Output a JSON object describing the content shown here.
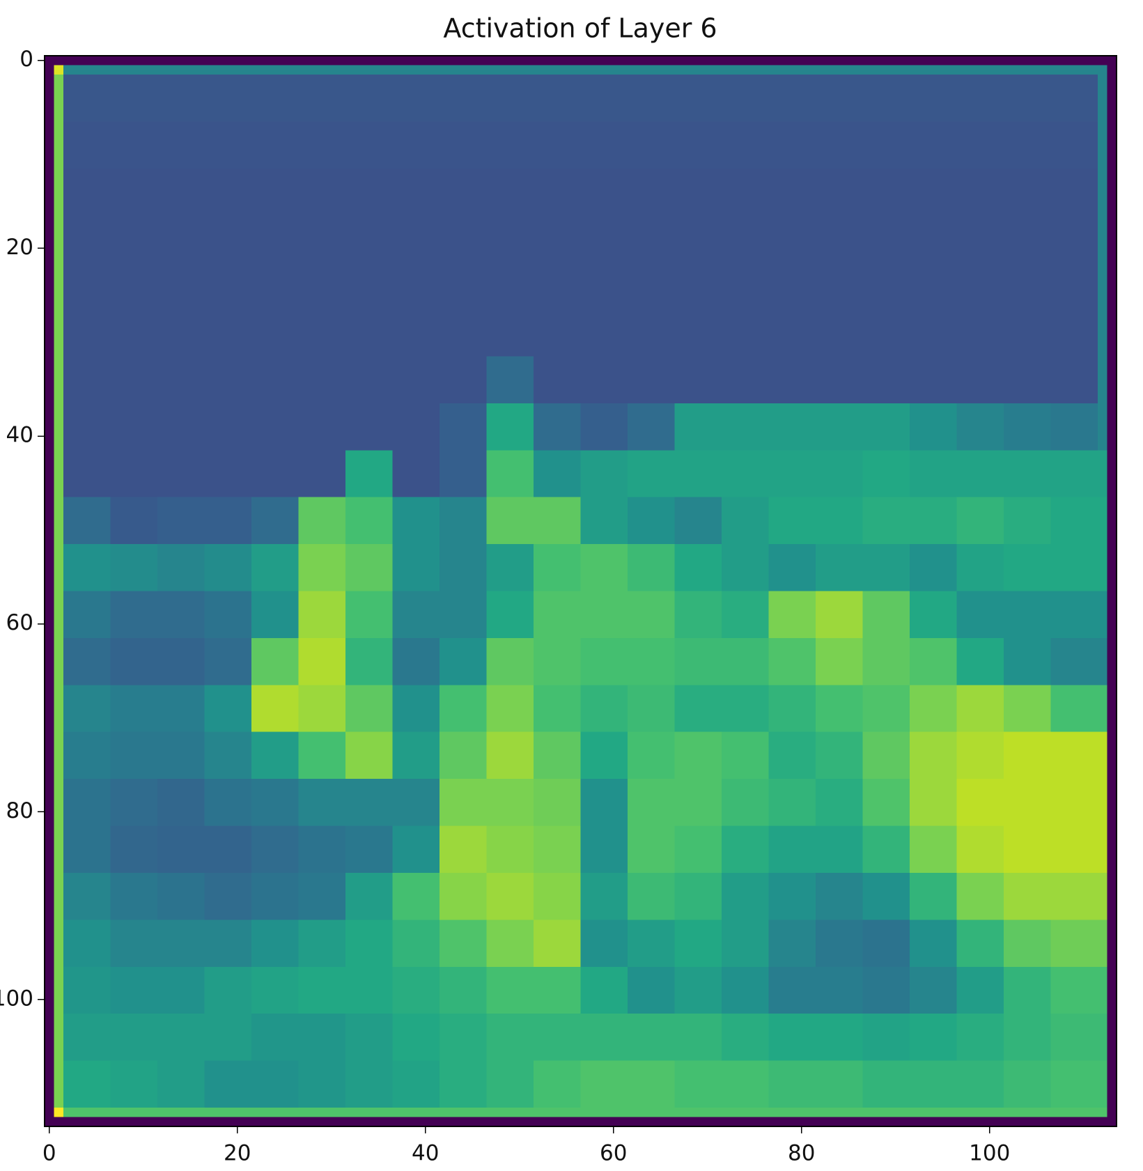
{
  "chart_data": {
    "type": "heatmap",
    "title": "Activation of Layer 6",
    "colormap": "viridis",
    "xlim": [
      -0.5,
      113.5
    ],
    "ylim": [
      113.5,
      -0.5
    ],
    "xticks": [
      0,
      20,
      40,
      60,
      80,
      100
    ],
    "yticks": [
      0,
      20,
      40,
      60,
      80,
      100
    ],
    "x_edges": [
      -0.5,
      0.5,
      1.5,
      6.5,
      11.5,
      16.5,
      21.5,
      26.5,
      31.5,
      36.5,
      41.5,
      46.5,
      51.5,
      56.5,
      61.5,
      66.5,
      71.5,
      76.5,
      81.5,
      86.5,
      91.5,
      96.5,
      101.5,
      106.5,
      111.5,
      112.5,
      113.5
    ],
    "y_edges": [
      -0.5,
      0.5,
      1.5,
      6.5,
      11.5,
      16.5,
      21.5,
      26.5,
      31.5,
      36.5,
      41.5,
      46.5,
      51.5,
      56.5,
      61.5,
      66.5,
      71.5,
      76.5,
      81.5,
      86.5,
      91.5,
      96.5,
      101.5,
      106.5,
      111.5,
      112.5,
      113.5
    ],
    "values": [
      [
        0,
        0,
        0,
        0,
        0,
        0,
        0,
        0,
        0,
        0,
        0,
        0,
        0,
        0,
        0,
        0,
        0,
        0,
        0,
        0,
        0,
        0,
        0,
        0,
        0,
        0
      ],
      [
        0,
        0.95,
        0.45,
        0.45,
        0.45,
        0.45,
        0.45,
        0.45,
        0.45,
        0.45,
        0.45,
        0.45,
        0.45,
        0.45,
        0.45,
        0.45,
        0.45,
        0.45,
        0.45,
        0.45,
        0.45,
        0.45,
        0.45,
        0.45,
        0.45,
        0
      ],
      [
        0,
        0.8,
        0.27,
        0.27,
        0.27,
        0.27,
        0.27,
        0.27,
        0.27,
        0.27,
        0.27,
        0.27,
        0.27,
        0.27,
        0.27,
        0.27,
        0.27,
        0.27,
        0.27,
        0.27,
        0.27,
        0.27,
        0.27,
        0.27,
        0.45,
        0
      ],
      [
        0,
        0.8,
        0.26,
        0.26,
        0.26,
        0.26,
        0.26,
        0.26,
        0.26,
        0.26,
        0.26,
        0.26,
        0.26,
        0.26,
        0.26,
        0.26,
        0.26,
        0.26,
        0.26,
        0.26,
        0.26,
        0.26,
        0.26,
        0.26,
        0.45,
        0
      ],
      [
        0,
        0.8,
        0.25,
        0.25,
        0.25,
        0.25,
        0.25,
        0.25,
        0.25,
        0.25,
        0.25,
        0.25,
        0.25,
        0.25,
        0.25,
        0.25,
        0.25,
        0.25,
        0.25,
        0.25,
        0.25,
        0.25,
        0.25,
        0.25,
        0.45,
        0
      ],
      [
        0,
        0.8,
        0.25,
        0.25,
        0.25,
        0.25,
        0.25,
        0.25,
        0.25,
        0.25,
        0.25,
        0.25,
        0.25,
        0.25,
        0.25,
        0.25,
        0.25,
        0.25,
        0.25,
        0.25,
        0.25,
        0.25,
        0.25,
        0.25,
        0.45,
        0
      ],
      [
        0,
        0.8,
        0.25,
        0.25,
        0.25,
        0.25,
        0.25,
        0.25,
        0.25,
        0.25,
        0.25,
        0.25,
        0.25,
        0.25,
        0.25,
        0.25,
        0.25,
        0.25,
        0.25,
        0.25,
        0.25,
        0.25,
        0.25,
        0.25,
        0.45,
        0
      ],
      [
        0,
        0.8,
        0.25,
        0.25,
        0.25,
        0.25,
        0.25,
        0.25,
        0.25,
        0.25,
        0.25,
        0.25,
        0.25,
        0.25,
        0.25,
        0.25,
        0.25,
        0.25,
        0.25,
        0.25,
        0.25,
        0.25,
        0.25,
        0.25,
        0.45,
        0
      ],
      [
        0,
        0.8,
        0.25,
        0.25,
        0.25,
        0.25,
        0.25,
        0.25,
        0.25,
        0.25,
        0.25,
        0.35,
        0.25,
        0.25,
        0.25,
        0.25,
        0.25,
        0.25,
        0.25,
        0.25,
        0.25,
        0.25,
        0.25,
        0.25,
        0.45,
        0
      ],
      [
        0,
        0.8,
        0.25,
        0.25,
        0.25,
        0.25,
        0.25,
        0.25,
        0.25,
        0.25,
        0.3,
        0.6,
        0.35,
        0.3,
        0.35,
        0.55,
        0.55,
        0.55,
        0.55,
        0.55,
        0.5,
        0.45,
        0.42,
        0.4,
        0.45,
        0
      ],
      [
        0,
        0.8,
        0.25,
        0.25,
        0.25,
        0.25,
        0.25,
        0.25,
        0.6,
        0.25,
        0.3,
        0.7,
        0.5,
        0.55,
        0.58,
        0.58,
        0.58,
        0.58,
        0.58,
        0.6,
        0.58,
        0.58,
        0.58,
        0.58,
        0.58,
        0
      ],
      [
        0,
        0.8,
        0.35,
        0.28,
        0.3,
        0.3,
        0.35,
        0.75,
        0.7,
        0.5,
        0.45,
        0.75,
        0.75,
        0.55,
        0.5,
        0.45,
        0.55,
        0.6,
        0.6,
        0.62,
        0.62,
        0.65,
        0.62,
        0.6,
        0.6,
        0
      ],
      [
        0,
        0.8,
        0.5,
        0.48,
        0.45,
        0.48,
        0.55,
        0.8,
        0.75,
        0.5,
        0.45,
        0.55,
        0.7,
        0.72,
        0.68,
        0.6,
        0.55,
        0.5,
        0.55,
        0.55,
        0.5,
        0.58,
        0.6,
        0.6,
        0.6,
        0
      ],
      [
        0,
        0.8,
        0.4,
        0.35,
        0.35,
        0.38,
        0.5,
        0.85,
        0.7,
        0.45,
        0.45,
        0.6,
        0.72,
        0.72,
        0.72,
        0.65,
        0.62,
        0.8,
        0.85,
        0.75,
        0.6,
        0.5,
        0.5,
        0.5,
        0.5,
        0
      ],
      [
        0,
        0.8,
        0.35,
        0.32,
        0.32,
        0.35,
        0.75,
        0.88,
        0.65,
        0.4,
        0.5,
        0.75,
        0.72,
        0.7,
        0.7,
        0.68,
        0.68,
        0.72,
        0.8,
        0.75,
        0.72,
        0.6,
        0.5,
        0.45,
        0.45,
        0
      ],
      [
        0,
        0.8,
        0.45,
        0.42,
        0.42,
        0.5,
        0.88,
        0.85,
        0.75,
        0.5,
        0.7,
        0.8,
        0.7,
        0.65,
        0.68,
        0.62,
        0.62,
        0.65,
        0.7,
        0.72,
        0.8,
        0.85,
        0.8,
        0.7,
        0.7,
        0
      ],
      [
        0,
        0.8,
        0.42,
        0.4,
        0.4,
        0.45,
        0.55,
        0.7,
        0.82,
        0.55,
        0.75,
        0.85,
        0.75,
        0.6,
        0.7,
        0.72,
        0.7,
        0.62,
        0.65,
        0.75,
        0.85,
        0.88,
        0.9,
        0.9,
        0.9,
        0
      ],
      [
        0,
        0.8,
        0.38,
        0.35,
        0.33,
        0.38,
        0.4,
        0.45,
        0.45,
        0.45,
        0.8,
        0.8,
        0.78,
        0.5,
        0.72,
        0.72,
        0.68,
        0.65,
        0.62,
        0.72,
        0.85,
        0.9,
        0.9,
        0.9,
        0.9,
        0
      ],
      [
        0,
        0.8,
        0.38,
        0.33,
        0.32,
        0.32,
        0.35,
        0.38,
        0.4,
        0.5,
        0.85,
        0.82,
        0.8,
        0.5,
        0.72,
        0.7,
        0.62,
        0.58,
        0.58,
        0.65,
        0.8,
        0.88,
        0.9,
        0.9,
        0.9,
        0
      ],
      [
        0,
        0.8,
        0.45,
        0.4,
        0.38,
        0.35,
        0.38,
        0.4,
        0.55,
        0.7,
        0.82,
        0.85,
        0.82,
        0.55,
        0.68,
        0.65,
        0.55,
        0.5,
        0.45,
        0.5,
        0.65,
        0.8,
        0.85,
        0.85,
        0.85,
        0
      ],
      [
        0,
        0.8,
        0.5,
        0.45,
        0.45,
        0.45,
        0.5,
        0.55,
        0.6,
        0.65,
        0.72,
        0.8,
        0.85,
        0.5,
        0.55,
        0.6,
        0.55,
        0.45,
        0.4,
        0.38,
        0.5,
        0.65,
        0.75,
        0.78,
        0.78,
        0
      ],
      [
        0,
        0.8,
        0.52,
        0.5,
        0.5,
        0.55,
        0.58,
        0.6,
        0.6,
        0.62,
        0.65,
        0.7,
        0.7,
        0.6,
        0.5,
        0.55,
        0.5,
        0.42,
        0.42,
        0.4,
        0.45,
        0.55,
        0.65,
        0.7,
        0.7,
        0
      ],
      [
        0,
        0.8,
        0.55,
        0.55,
        0.55,
        0.55,
        0.52,
        0.52,
        0.55,
        0.6,
        0.62,
        0.65,
        0.65,
        0.65,
        0.65,
        0.65,
        0.62,
        0.6,
        0.6,
        0.58,
        0.6,
        0.62,
        0.65,
        0.68,
        0.68,
        0
      ],
      [
        0,
        0.8,
        0.6,
        0.58,
        0.55,
        0.5,
        0.5,
        0.52,
        0.55,
        0.58,
        0.62,
        0.65,
        0.7,
        0.72,
        0.72,
        0.7,
        0.7,
        0.68,
        0.68,
        0.65,
        0.65,
        0.65,
        0.68,
        0.7,
        0.7,
        0
      ],
      [
        0,
        1.0,
        0.72,
        0.72,
        0.72,
        0.72,
        0.72,
        0.72,
        0.72,
        0.72,
        0.72,
        0.72,
        0.72,
        0.72,
        0.72,
        0.72,
        0.72,
        0.72,
        0.72,
        0.72,
        0.72,
        0.72,
        0.72,
        0.72,
        0.72,
        0
      ],
      [
        0,
        0,
        0,
        0,
        0,
        0,
        0,
        0,
        0,
        0,
        0,
        0,
        0,
        0,
        0,
        0,
        0,
        0,
        0,
        0,
        0,
        0,
        0,
        0,
        0,
        0
      ]
    ]
  }
}
